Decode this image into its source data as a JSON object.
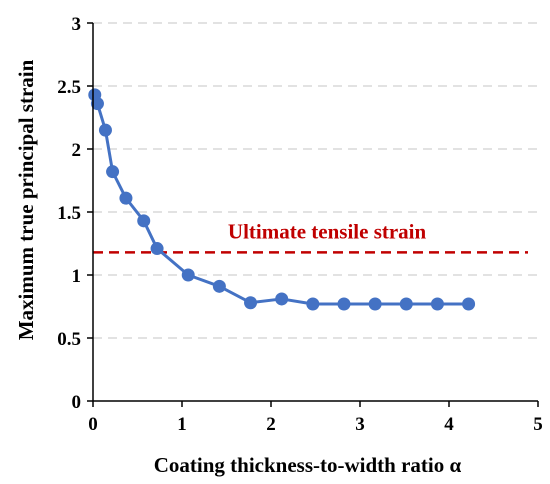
{
  "chart_data": {
    "type": "line",
    "title": "",
    "xlabel": "Coating thickness-to-width ratio α",
    "ylabel": "Maximum true principal strain",
    "xlim": [
      0,
      5
    ],
    "ylim": [
      0,
      3
    ],
    "xticks": [
      0,
      1,
      2,
      3,
      4,
      5
    ],
    "yticks": [
      0,
      0.5,
      1,
      1.5,
      2,
      2.5,
      3
    ],
    "xtick_labels": [
      "0",
      "1",
      "2",
      "3",
      "4",
      "5"
    ],
    "ytick_labels": [
      "0",
      "0.5",
      "1",
      "1.5",
      "2",
      "2.5",
      "3"
    ],
    "grid": "horizontal dashed",
    "series": [
      {
        "color": "#4472C4",
        "x": [
          0.02,
          0.05,
          0.14,
          0.22,
          0.37,
          0.57,
          0.72,
          1.07,
          1.42,
          1.77,
          2.12,
          2.47,
          2.82,
          3.17,
          3.52,
          3.87,
          4.22
        ],
        "y": [
          2.43,
          2.36,
          2.15,
          1.82,
          1.61,
          1.43,
          1.21,
          1.0,
          0.91,
          0.78,
          0.81,
          0.77,
          0.77,
          0.77,
          0.77,
          0.77,
          0.77
        ]
      }
    ],
    "reference_line": {
      "label": "Ultimate tensile strain",
      "y": 1.18,
      "color": "#C00000",
      "style": "dashed"
    }
  }
}
